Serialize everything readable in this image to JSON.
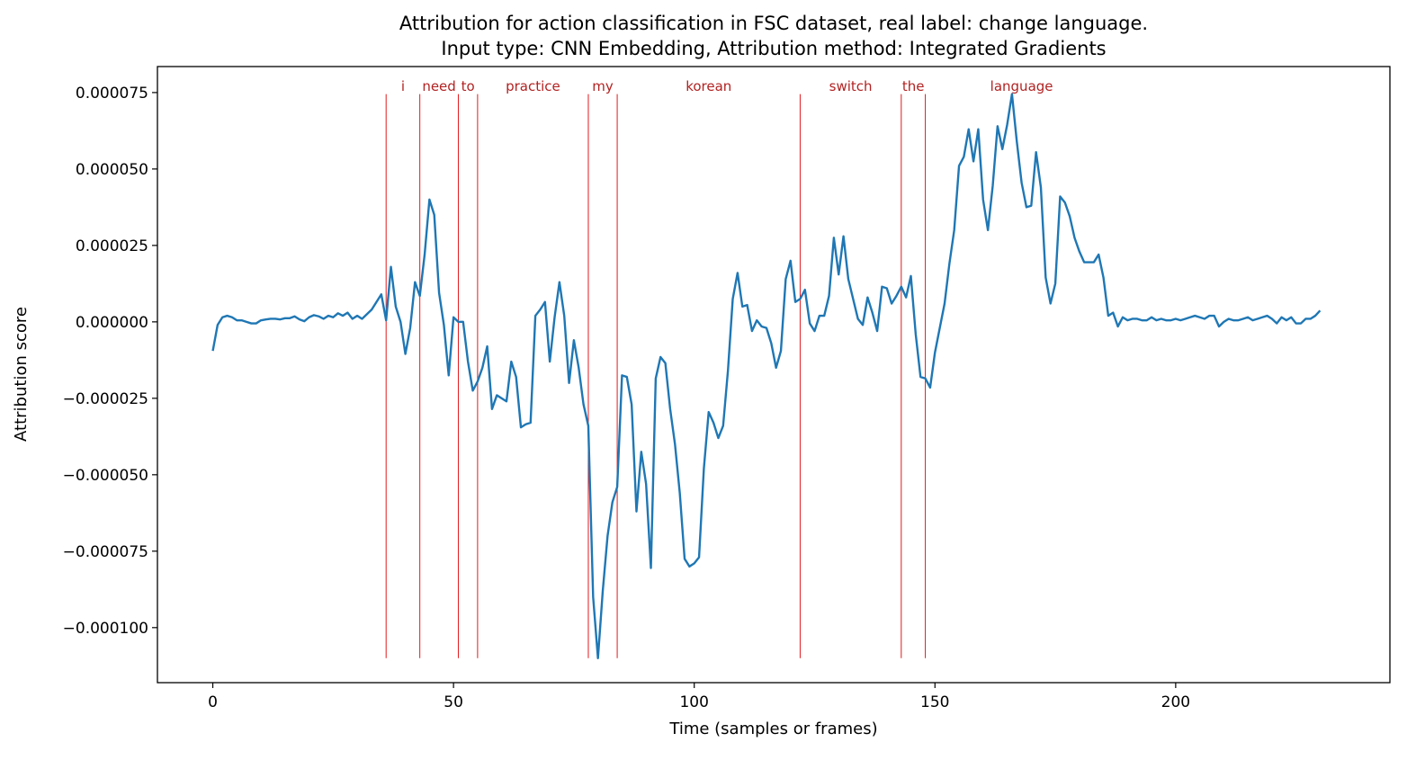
{
  "chart_data": {
    "type": "line",
    "title": "Attribution for action classification in FSC dataset, real label: change language.",
    "subtitle": "Input type: CNN Embedding, Attribution method: Integrated Gradients",
    "xlabel": "Time (samples or frames)",
    "ylabel": "Attribution score",
    "xlim": [
      -11.5,
      244.5
    ],
    "ylim": [
      -0.000118,
      8.35e-05
    ],
    "x_ticks": [
      0,
      50,
      100,
      150,
      200
    ],
    "x_tick_labels": [
      "0",
      "50",
      "100",
      "150",
      "200"
    ],
    "y_ticks": [
      7.5e-05,
      5e-05,
      2.5e-05,
      0.0,
      -2.5e-05,
      -5e-05,
      -7.5e-05,
      -0.0001
    ],
    "y_tick_labels": [
      "0.000075",
      "0.000050",
      "0.000025",
      "0.000000",
      "−0.000025",
      "−0.000050",
      "−0.000075",
      "−0.000100"
    ],
    "grid": false,
    "line_color": "#1f77b4",
    "marker_color": "#e31a1c",
    "label_color": "#b22222",
    "word_boundaries": [
      36,
      43,
      51,
      55,
      78,
      84,
      122,
      143,
      148
    ],
    "word_line_range": [
      -0.00011,
      7.45e-05
    ],
    "words": [
      {
        "text": "i",
        "x": 39.5
      },
      {
        "text": "need",
        "x": 47
      },
      {
        "text": "to",
        "x": 53
      },
      {
        "text": "practice",
        "x": 66.5
      },
      {
        "text": "my",
        "x": 81
      },
      {
        "text": "korean",
        "x": 103
      },
      {
        "text": "switch",
        "x": 132.5
      },
      {
        "text": "the",
        "x": 145.5
      },
      {
        "text": "language",
        "x": 168
      }
    ],
    "series": [
      {
        "values": [
          -9.5e-06,
          -1e-06,
          1.5e-06,
          2e-06,
          1.5e-06,
          5e-07,
          5e-07,
          0.0,
          -5e-07,
          -5e-07,
          5e-07,
          8e-07,
          1e-06,
          1e-06,
          8e-07,
          1.2e-06,
          1.2e-06,
          1.8e-06,
          8e-07,
          2e-07,
          1.5e-06,
          2.2e-06,
          1.8e-06,
          1e-06,
          2e-06,
          1.5e-06,
          2.8e-06,
          2e-06,
          3e-06,
          1e-06,
          2e-06,
          1e-06,
          2.5e-06,
          4e-06,
          6.5e-06,
          9e-06,
          5e-07,
          1.8e-05,
          5e-06,
          0.0,
          -1.05e-05,
          -2e-06,
          1.3e-05,
          8.5e-06,
          2.2e-05,
          4e-05,
          3.5e-05,
          9.5e-06,
          -1e-06,
          -1.75e-05,
          1.5e-06,
          0.0,
          0.0,
          -1.3e-05,
          -2.25e-05,
          -1.95e-05,
          -1.5e-05,
          -8e-06,
          -2.85e-05,
          -2.4e-05,
          -2.5e-05,
          -2.6e-05,
          -1.3e-05,
          -1.8e-05,
          -3.45e-05,
          -3.35e-05,
          -3.3e-05,
          2e-06,
          4e-06,
          6.5e-06,
          -1.3e-05,
          1.5e-06,
          1.3e-05,
          2e-06,
          -2e-05,
          -6e-06,
          -1.5e-05,
          -2.7e-05,
          -3.4e-05,
          -9e-05,
          -0.00011,
          -8.8e-05,
          -7e-05,
          -5.9e-05,
          -5.4e-05,
          -1.75e-05,
          -1.8e-05,
          -2.7e-05,
          -6.2e-05,
          -4.25e-05,
          -5.3e-05,
          -8.05e-05,
          -1.85e-05,
          -1.15e-05,
          -1.35e-05,
          -2.85e-05,
          -4e-05,
          -5.6e-05,
          -7.75e-05,
          -8e-05,
          -7.9e-05,
          -7.7e-05,
          -4.8e-05,
          -2.95e-05,
          -3.3e-05,
          -3.8e-05,
          -3.4e-05,
          -1.6e-05,
          7.5e-06,
          1.6e-05,
          5e-06,
          5.5e-06,
          -3e-06,
          5e-07,
          -1.5e-06,
          -2e-06,
          -7e-06,
          -1.5e-05,
          -9.5e-06,
          1.4e-05,
          2e-05,
          6.5e-06,
          7.5e-06,
          1.05e-05,
          -5e-07,
          -3e-06,
          2e-06,
          2e-06,
          8.5e-06,
          2.75e-05,
          1.55e-05,
          2.8e-05,
          1.4e-05,
          7.5e-06,
          1e-06,
          -1e-06,
          8e-06,
          3e-06,
          -3e-06,
          1.15e-05,
          1.1e-05,
          6e-06,
          8.5e-06,
          1.15e-05,
          8e-06,
          1.5e-05,
          -4e-06,
          -1.8e-05,
          -1.85e-05,
          -2.15e-05,
          -1e-05,
          -2e-06,
          6e-06,
          1.9e-05,
          3e-05,
          5.1e-05,
          5.4e-05,
          6.3e-05,
          5.25e-05,
          6.3e-05,
          4e-05,
          3e-05,
          4.45e-05,
          6.4e-05,
          5.65e-05,
          6.45e-05,
          7.45e-05,
          5.9e-05,
          4.55e-05,
          3.75e-05,
          3.8e-05,
          5.55e-05,
          4.4e-05,
          1.45e-05,
          6e-06,
          1.25e-05,
          4.1e-05,
          3.9e-05,
          3.45e-05,
          2.75e-05,
          2.3e-05,
          1.95e-05,
          1.95e-05,
          1.95e-05,
          2.2e-05,
          1.45e-05,
          2e-06,
          3e-06,
          -1.5e-06,
          1.5e-06,
          5e-07,
          1e-06,
          1e-06,
          5e-07,
          5e-07,
          1.5e-06,
          5e-07,
          1e-06,
          5e-07,
          5e-07,
          1e-06,
          5e-07,
          1e-06,
          1.5e-06,
          2e-06,
          1.5e-06,
          1e-06,
          2e-06,
          2e-06,
          -1.5e-06,
          0.0,
          1e-06,
          5e-07,
          5e-07,
          1e-06,
          1.5e-06,
          5e-07,
          1e-06,
          1.5e-06,
          2e-06,
          1e-06,
          -5e-07,
          1.5e-06,
          5e-07,
          1.5e-06,
          -5e-07,
          -5e-07,
          1e-06,
          1e-06,
          2e-06,
          3.7e-06
        ]
      }
    ]
  }
}
